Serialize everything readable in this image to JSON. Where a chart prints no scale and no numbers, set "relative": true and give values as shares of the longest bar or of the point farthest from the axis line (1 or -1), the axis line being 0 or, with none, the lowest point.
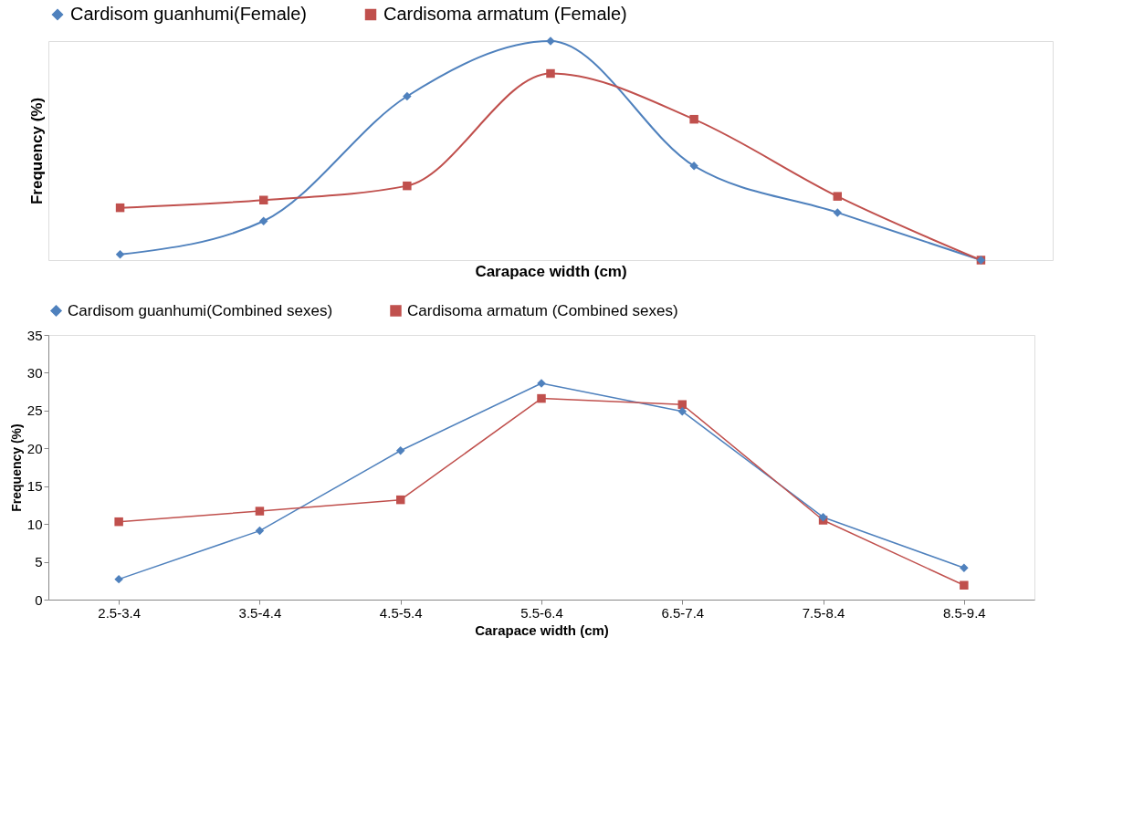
{
  "chart_data": [
    {
      "type": "line",
      "relative": true,
      "xlabel": "Carapace width (cm)",
      "ylabel": "Frequency (%)",
      "categories": [
        null,
        null,
        null,
        null,
        null,
        null,
        null
      ],
      "tick_labels": false,
      "grid": false,
      "legend": "top",
      "line_style": "solid",
      "series": [
        {
          "name": "Cardisom guanhumi(Female)",
          "color": "#4f81bd",
          "marker": "diamond",
          "values": [
            0.026,
            0.178,
            0.748,
            1,
            0.43,
            0.217,
            0
          ]
        },
        {
          "name": "Cardisoma armatum (Female)",
          "color": "#c0504d",
          "marker": "square",
          "values": [
            0.239,
            0.274,
            0.339,
            0.852,
            0.643,
            0.291,
            0
          ]
        }
      ]
    },
    {
      "type": "line",
      "xlabel": "Carapace  width (cm)",
      "ylabel": "Frequency (%)",
      "categories": [
        "2.5-3.4",
        "3.5-4.4",
        "4.5-5.4",
        "5.5-6.4",
        "6.5-7.4",
        "7.5-8.4",
        "8.5-9.4"
      ],
      "ylim": [
        0,
        35
      ],
      "yticks": [
        0,
        5,
        10,
        15,
        20,
        25,
        30,
        35
      ],
      "grid": false,
      "legend": "top",
      "line_style": "solid",
      "series": [
        {
          "name": "Cardisom guanhumi(Combined sexes)",
          "color": "#4f81bd",
          "marker": "diamond",
          "values": [
            2.7,
            9.1,
            19.7,
            28.6,
            24.9,
            10.9,
            4.2
          ]
        },
        {
          "name": "Cardisoma armatum (Combined sexes)",
          "color": "#c0504d",
          "marker": "square",
          "values": [
            10.3,
            11.7,
            13.2,
            26.6,
            25.8,
            10.5,
            1.9
          ]
        }
      ]
    }
  ]
}
